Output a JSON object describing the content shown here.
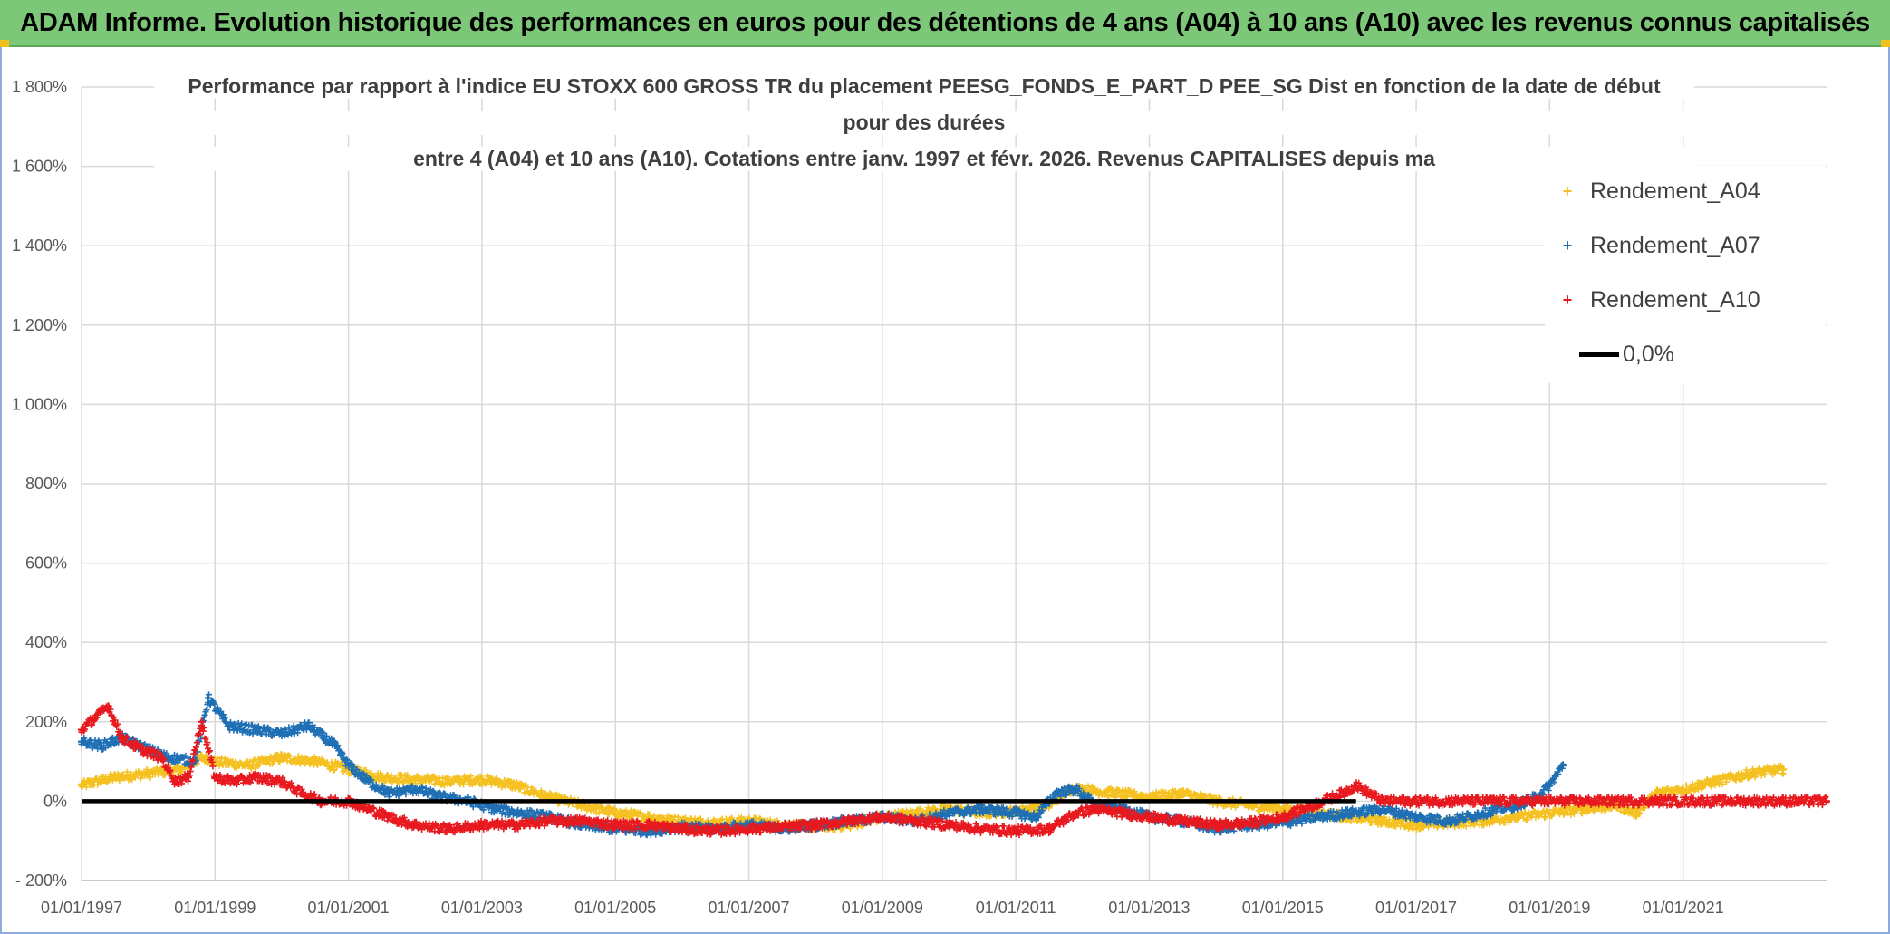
{
  "banner": {
    "text": "ADAM Informe. Evolution historique des performances en euros pour des détentions de 4 ans (A04) à 10 ans (A10) avec les revenus connus capitalisés"
  },
  "chart_data": {
    "type": "scatter",
    "title_lines": [
      "Performance  par rapport à l'indice EU STOXX 600 GROSS TR  du placement PEESG_FONDS_E_PART_D PEE_SG Dist en fonction de la date de début",
      "pour des durées",
      "entre 4 (A04) et 10 ans (A10). Cotations entre janv. 1997 et févr. 2026. Revenus CAPITALISES depuis ma"
    ],
    "xlabel": "",
    "ylabel": "",
    "x_range": [
      1997.0,
      2023.15
    ],
    "ylim": [
      -200,
      1800
    ],
    "y_ticks": [
      -200,
      0,
      200,
      400,
      600,
      800,
      1000,
      1200,
      1400,
      1600,
      1800
    ],
    "y_tick_labels": [
      "- 200%",
      "0%",
      "200%",
      "400%",
      "600%",
      "800%",
      "1 000%",
      "1 200%",
      "1 400%",
      "1 600%",
      "1 800%"
    ],
    "x_ticks": [
      1997,
      1999,
      2001,
      2003,
      2005,
      2007,
      2009,
      2011,
      2013,
      2015,
      2017,
      2019,
      2021
    ],
    "x_tick_labels": [
      "01/01/1997",
      "01/01/1999",
      "01/01/2001",
      "01/01/2003",
      "01/01/2005",
      "01/01/2007",
      "01/01/2009",
      "01/01/2011",
      "01/01/2013",
      "01/01/2015",
      "01/01/2017",
      "01/01/2019",
      "01/01/2021"
    ],
    "grid": true,
    "legend_position": "top-right",
    "series": [
      {
        "name": "Rendement_A04",
        "color": "#f5c120",
        "x": [
          1997.0,
          1997.5,
          1998.0,
          1998.5,
          1998.8,
          1999.0,
          1999.5,
          2000.0,
          2000.5,
          2001.0,
          2001.5,
          2002.0,
          2002.5,
          2003.0,
          2003.5,
          2004.0,
          2004.5,
          2005.0,
          2005.5,
          2006.0,
          2006.5,
          2007.0,
          2007.5,
          2008.0,
          2008.5,
          2009.0,
          2009.5,
          2010.0,
          2010.5,
          2011.0,
          2011.5,
          2011.8,
          2012.0,
          2012.5,
          2013.0,
          2013.5,
          2014.0,
          2014.5,
          2015.0,
          2015.5,
          2016.0,
          2016.5,
          2017.0,
          2017.5,
          2018.0,
          2018.5,
          2019.0,
          2019.5,
          2020.0,
          2020.3,
          2020.6,
          2021.0,
          2021.5,
          2022.0,
          2022.5
        ],
        "y": [
          40,
          60,
          70,
          80,
          110,
          100,
          90,
          110,
          100,
          80,
          60,
          55,
          50,
          55,
          40,
          10,
          -10,
          -30,
          -40,
          -50,
          -55,
          -50,
          -60,
          -65,
          -60,
          -40,
          -30,
          -20,
          -30,
          -25,
          -10,
          30,
          30,
          20,
          10,
          20,
          0,
          -10,
          -20,
          -30,
          -40,
          -50,
          -60,
          -55,
          -50,
          -40,
          -30,
          -20,
          -10,
          -30,
          20,
          30,
          50,
          70,
          80
        ]
      },
      {
        "name": "Rendement_A07",
        "color": "#1f6fb5",
        "x": [
          1997.0,
          1997.3,
          1997.6,
          1998.0,
          1998.3,
          1998.7,
          1998.9,
          1999.2,
          1999.6,
          2000.0,
          2000.4,
          2000.8,
          2001.0,
          2001.3,
          2001.6,
          2002.0,
          2002.4,
          2002.8,
          2003.2,
          2003.6,
          2004.0,
          2004.5,
          2005.0,
          2005.5,
          2006.0,
          2006.5,
          2007.0,
          2007.5,
          2008.0,
          2008.5,
          2009.0,
          2009.5,
          2010.0,
          2010.5,
          2011.0,
          2011.3,
          2011.6,
          2011.9,
          2012.2,
          2012.6,
          2013.0,
          2013.5,
          2014.0,
          2014.5,
          2015.0,
          2015.5,
          2016.0,
          2016.5,
          2017.0,
          2017.5,
          2018.0,
          2018.5,
          2018.8,
          2019.0,
          2019.2
        ],
        "y": [
          150,
          140,
          160,
          130,
          110,
          100,
          260,
          190,
          180,
          170,
          190,
          140,
          90,
          50,
          20,
          30,
          10,
          0,
          -20,
          -30,
          -40,
          -60,
          -70,
          -75,
          -65,
          -70,
          -60,
          -70,
          -60,
          -50,
          -40,
          -50,
          -30,
          -20,
          -30,
          -40,
          20,
          30,
          -10,
          -20,
          -40,
          -50,
          -70,
          -60,
          -55,
          -40,
          -30,
          -20,
          -40,
          -50,
          -30,
          -10,
          10,
          40,
          90
        ]
      },
      {
        "name": "Rendement_A10",
        "color": "#e8191e",
        "x": [
          1997.0,
          1997.2,
          1997.4,
          1997.6,
          1997.9,
          1998.2,
          1998.4,
          1998.6,
          1998.8,
          1999.0,
          1999.3,
          1999.6,
          2000.0,
          2000.3,
          2000.6,
          2001.0,
          2001.3,
          2001.6,
          2002.0,
          2002.5,
          2003.0,
          2003.5,
          2004.0,
          2004.5,
          2005.0,
          2005.5,
          2006.0,
          2006.5,
          2007.0,
          2007.5,
          2008.0,
          2008.5,
          2009.0,
          2009.5,
          2010.0,
          2010.5,
          2011.0,
          2011.5,
          2011.9,
          2012.2,
          2012.6,
          2013.0,
          2013.5,
          2014.0,
          2014.5,
          2015.0,
          2015.3,
          2015.6,
          2015.9,
          2016.1,
          2016.5,
          2017.5,
          2018.5,
          2019.5,
          2020.5,
          2021.5,
          2022.5,
          2023.15
        ],
        "y": [
          180,
          210,
          240,
          160,
          130,
          110,
          50,
          60,
          200,
          60,
          50,
          60,
          50,
          20,
          0,
          0,
          -20,
          -40,
          -60,
          -70,
          -60,
          -60,
          -50,
          -50,
          -60,
          -60,
          -70,
          -75,
          -70,
          -65,
          -60,
          -50,
          -40,
          -50,
          -60,
          -70,
          -75,
          -70,
          -30,
          -20,
          -30,
          -40,
          -50,
          -60,
          -55,
          -40,
          -20,
          0,
          20,
          40,
          0,
          0,
          0,
          0,
          0,
          0,
          0,
          0
        ]
      },
      {
        "name": "0,0%",
        "color": "#000000",
        "x": [
          1997.0,
          2016.1
        ],
        "y": [
          0,
          0
        ]
      }
    ]
  },
  "legend": {
    "items": [
      {
        "label": "Rendement_A04",
        "marker": "+"
      },
      {
        "label": "Rendement_A07",
        "marker": "+"
      },
      {
        "label": "Rendement_A10",
        "marker": "+"
      },
      {
        "label": "0,0%",
        "marker": "line"
      }
    ]
  }
}
